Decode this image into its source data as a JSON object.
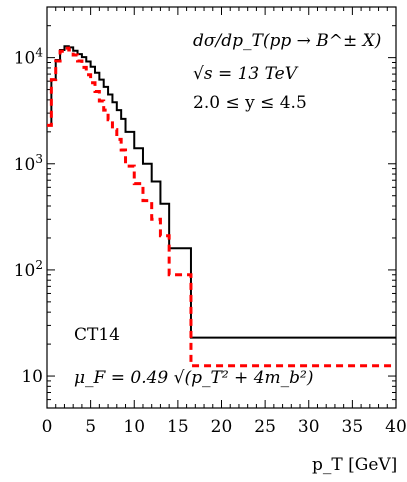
{
  "chart_data": {
    "type": "line",
    "chart_style": "step histogram",
    "title": "",
    "xlabel": "p_T [GeV]",
    "ylabel": "",
    "xlim": [
      0,
      40
    ],
    "ylim": [
      5,
      30000
    ],
    "y_scale": "log",
    "grid": false,
    "x_ticks": [
      0,
      5,
      10,
      15,
      20,
      25,
      30,
      35,
      40
    ],
    "x_tick_labels": [
      "0",
      "5",
      "10",
      "15",
      "20",
      "25",
      "30",
      "35",
      "40"
    ],
    "y_ticks": [
      10,
      100,
      1000,
      10000
    ],
    "y_tick_labels": [
      "10",
      "10^2",
      "10^3",
      "10^4"
    ],
    "annotations": [
      "dσ/dp_T(pp → B^± X)",
      "√s = 13 TeV",
      "2.0 ≤ y ≤ 4.5",
      "CT14",
      "μ_F = 0.49 √(p_T² + 4m_b²)"
    ],
    "bin_edges": [
      0,
      0.5,
      1,
      1.5,
      2,
      2.5,
      3,
      3.5,
      4,
      4.5,
      5,
      5.5,
      6,
      6.5,
      7,
      7.5,
      8,
      8.5,
      9,
      10,
      11,
      12,
      13,
      14,
      16.5,
      23.5,
      40
    ],
    "series": [
      {
        "color": "#000000",
        "linestyle": "solid",
        "values": [
          2300,
          6200,
          9500,
          11800,
          12800,
          12500,
          11600,
          10800,
          10100,
          9200,
          8200,
          7200,
          6200,
          5300,
          4500,
          3800,
          3200,
          2650,
          2000,
          1400,
          1000,
          680,
          420,
          160,
          23,
          23
        ]
      },
      {
        "color": "#ff0000",
        "linestyle": "dashed",
        "values": [
          2300,
          6200,
          9300,
          11500,
          12300,
          11800,
          10600,
          9300,
          8100,
          6900,
          5800,
          4800,
          3900,
          3200,
          2600,
          2100,
          1700,
          1350,
          950,
          650,
          450,
          300,
          210,
          90,
          12.5,
          12.5
        ]
      }
    ]
  }
}
